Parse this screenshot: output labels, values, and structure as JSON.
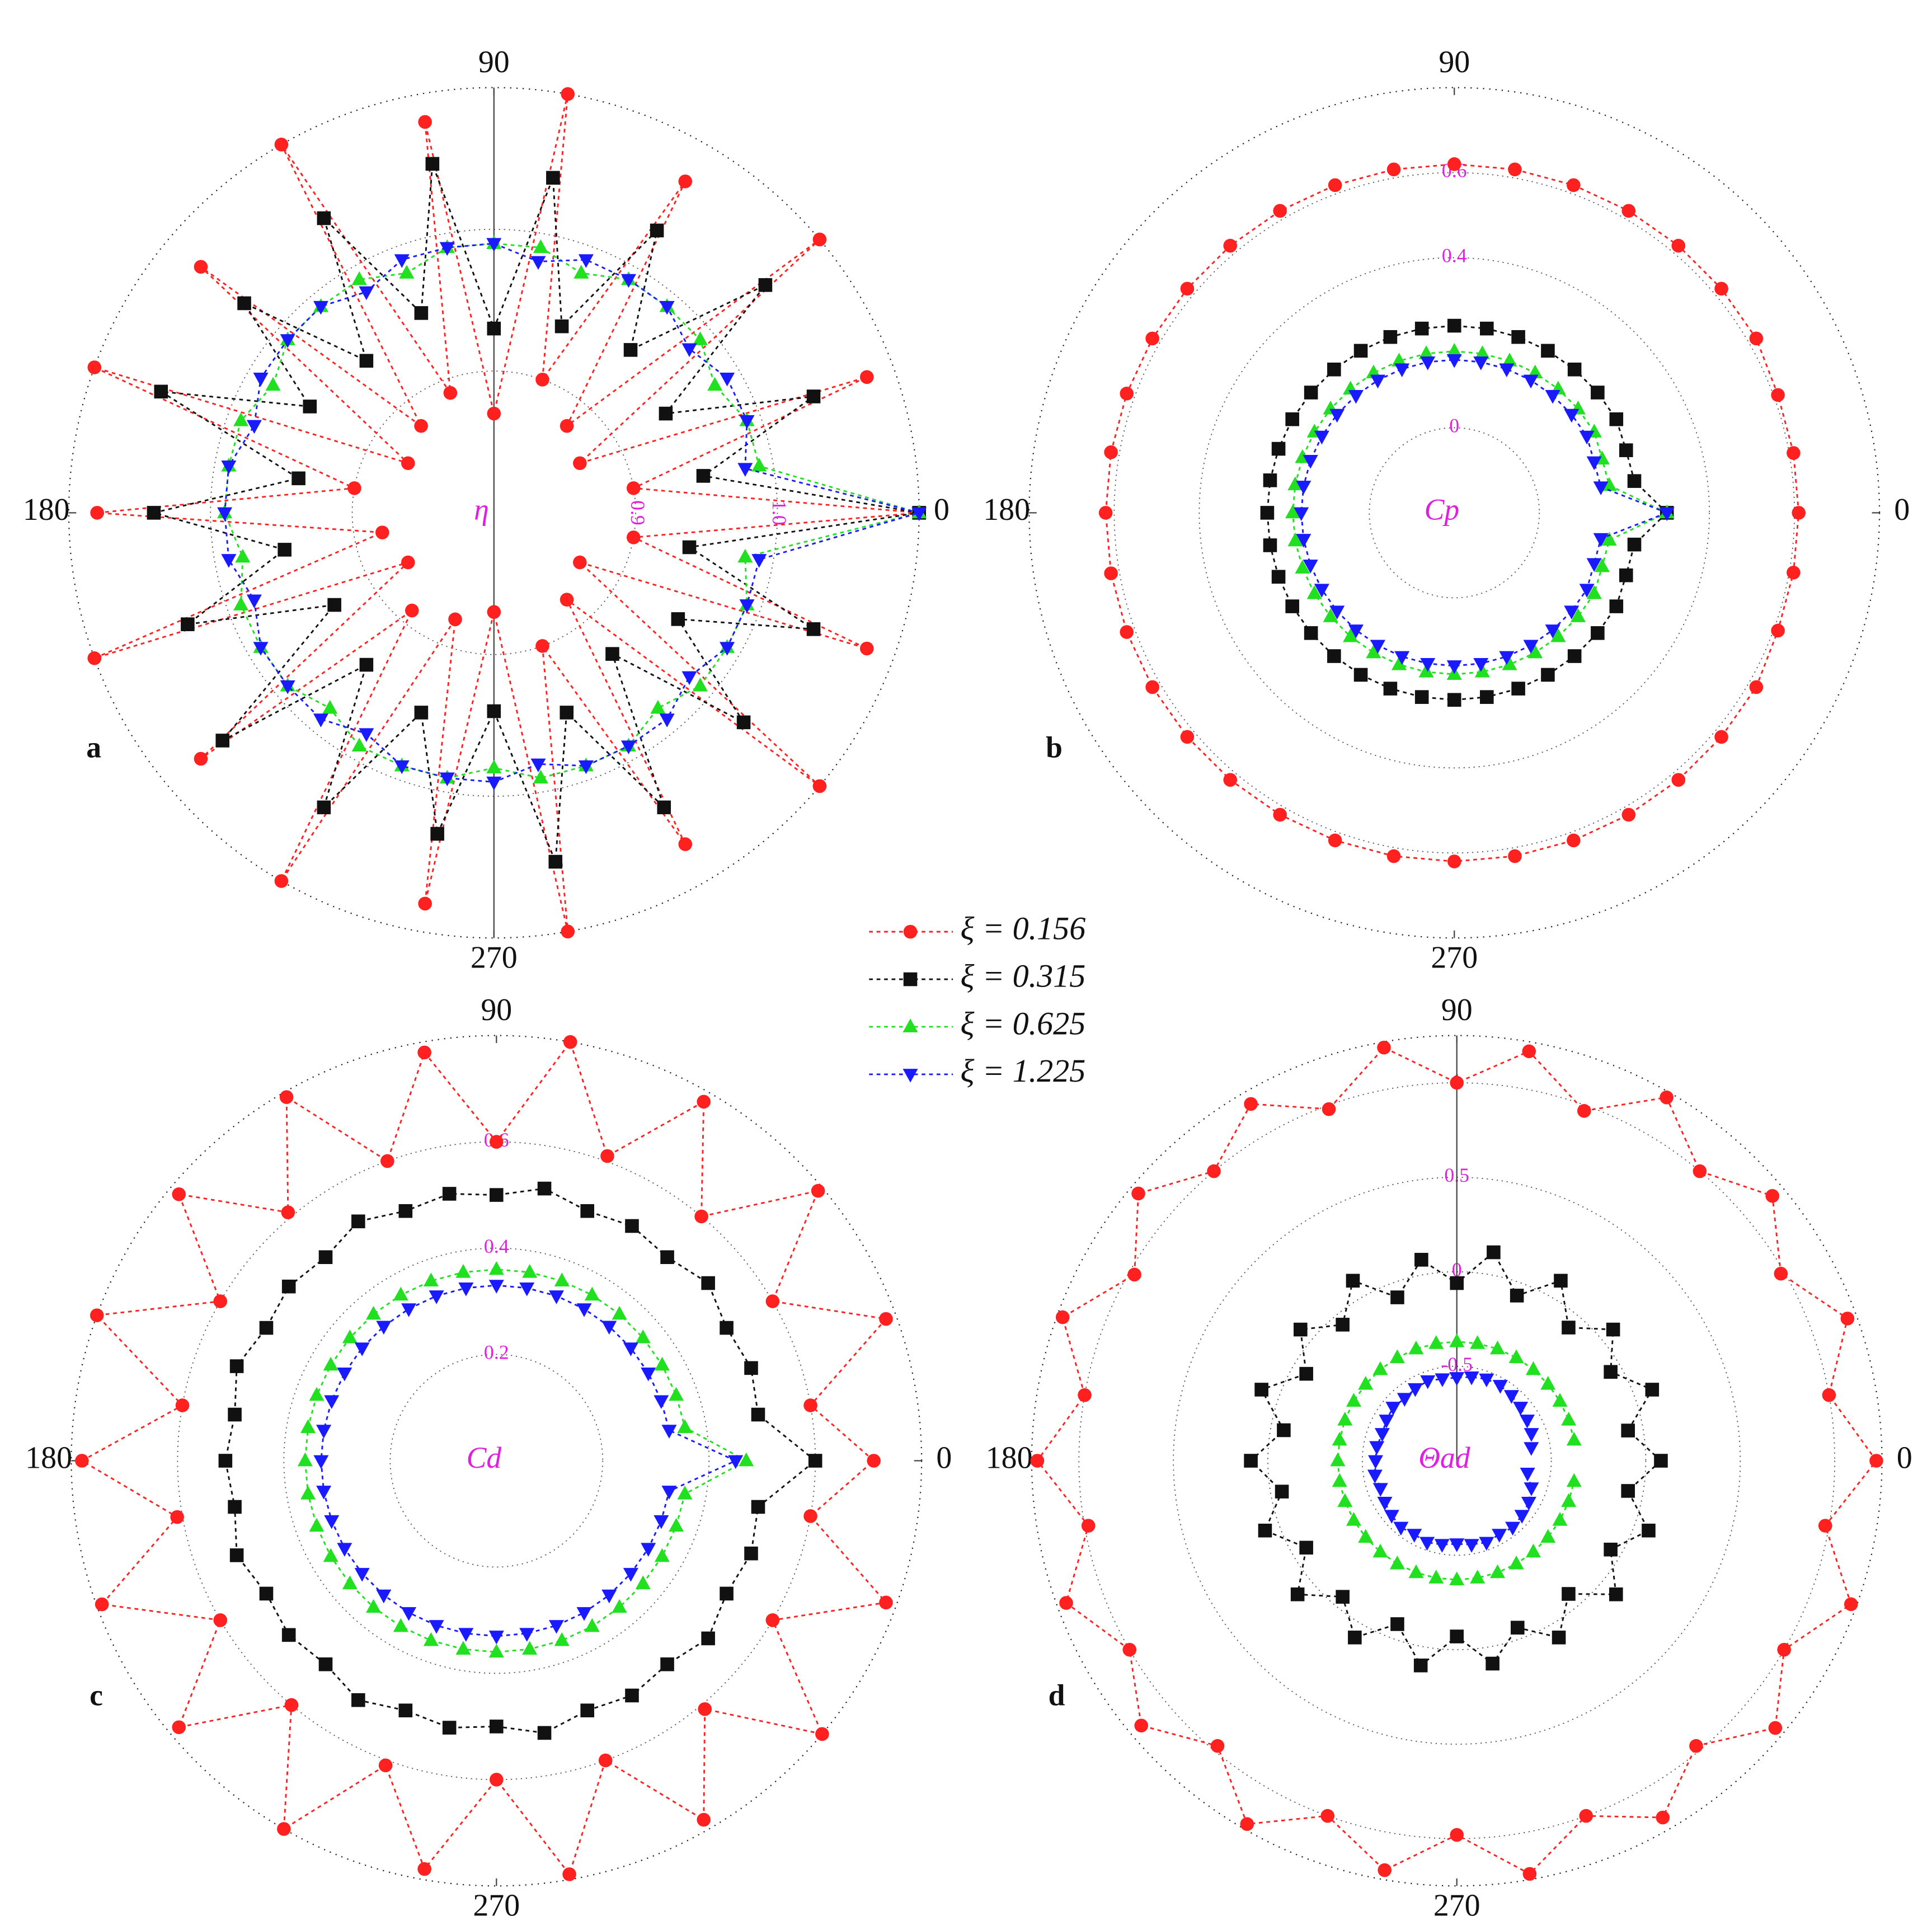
{
  "chart_data": [
    {
      "type": "polar",
      "label": "a",
      "title": "η",
      "theta": [
        0,
        10,
        20,
        30,
        40,
        50,
        60,
        70,
        80,
        90,
        100,
        110,
        120,
        130,
        140,
        150,
        160,
        170,
        180,
        190,
        200,
        210,
        220,
        230,
        240,
        250,
        260,
        270,
        280,
        290,
        300,
        310,
        320,
        330,
        340,
        350
      ],
      "thetaticks": [
        0,
        90,
        180,
        270
      ],
      "rlim": [
        0.8,
        1.1
      ],
      "rticks": [
        0.9,
        {
          "value": 1,
          "label": "1.0"
        }
      ],
      "series": [
        {
          "name": "ξ = 0.156",
          "color": "#ff2020",
          "marker": "circle",
          "values": [
            1.1,
            0.9,
            1.08,
            0.87,
            1.1,
            0.88,
            1.07,
            0.9,
            1.1,
            0.87,
            1.08,
            0.89,
            1.1,
            0.88,
            1.07,
            0.87,
            1.1,
            0.9,
            1.08,
            0.88,
            1.1,
            0.87,
            1.07,
            0.89,
            1.1,
            0.88,
            1.08,
            0.87,
            1.1,
            0.9,
            1.07,
            0.88,
            1.1,
            0.87,
            1.08,
            0.9
          ]
        },
        {
          "name": "ξ = 0.315",
          "color": "#111111",
          "marker": "square",
          "values": [
            1.1,
            0.95,
            1.04,
            0.94,
            1.05,
            0.95,
            1.03,
            0.94,
            1.04,
            0.93,
            1.05,
            0.95,
            1.04,
            0.94,
            1.03,
            0.95,
            1.05,
            0.94,
            1.04,
            0.95,
            1.03,
            0.93,
            1.05,
            0.94,
            1.04,
            0.95,
            1.03,
            0.94,
            1.05,
            0.95,
            1.04,
            0.93,
            1.03,
            0.95,
            1.04,
            0.94
          ]
        },
        {
          "name": "ξ = 0.625",
          "color": "#20e020",
          "marker": "triangle-up",
          "values": [
            1.1,
            0.99,
            0.99,
            0.98,
            0.99,
            0.99,
            0.99,
            0.98,
            0.99,
            0.99,
            0.99,
            0.98,
            0.99,
            0.99,
            0.99,
            0.98,
            0.99,
            0.99,
            0.99,
            0.98,
            0.99,
            0.99,
            0.99,
            0.98,
            0.99,
            0.99,
            0.99,
            0.98,
            0.99,
            0.99,
            0.99,
            0.98,
            0.99,
            0.99,
            0.99,
            0.98
          ]
        },
        {
          "name": "ξ = 1.225",
          "color": "#1a1aff",
          "marker": "triangle-down",
          "values": [
            1.1,
            0.98,
            0.99,
            0.99,
            0.98,
            0.99,
            0.99,
            0.99,
            0.98,
            0.99,
            0.99,
            0.99,
            0.98,
            0.99,
            0.99,
            0.99,
            0.98,
            0.99,
            0.99,
            0.99,
            0.98,
            0.99,
            0.99,
            0.99,
            0.98,
            0.99,
            0.99,
            0.99,
            0.98,
            0.99,
            0.99,
            0.99,
            0.98,
            0.99,
            0.99,
            0.99
          ]
        }
      ]
    },
    {
      "type": "polar",
      "label": "b",
      "title": "Cp",
      "theta": [
        0,
        10,
        20,
        30,
        40,
        50,
        60,
        70,
        80,
        90,
        100,
        110,
        120,
        130,
        140,
        150,
        160,
        170,
        180,
        190,
        200,
        210,
        220,
        230,
        240,
        250,
        260,
        270,
        280,
        290,
        300,
        310,
        320,
        330,
        340,
        350
      ],
      "thetaticks": [
        0,
        90,
        180,
        270
      ],
      "rlim": [
        -0.2,
        0.8
      ],
      "rticks": [
        0,
        0.4,
        0.6
      ],
      "series": [
        {
          "color": "#ff2020",
          "marker": "circle",
          "values": [
            0.61,
            0.61,
            0.61,
            0.62,
            0.62,
            0.62,
            0.62,
            0.62,
            0.62,
            0.62,
            0.62,
            0.62,
            0.62,
            0.62,
            0.62,
            0.62,
            0.62,
            0.62,
            0.62,
            0.62,
            0.62,
            0.62,
            0.62,
            0.62,
            0.62,
            0.62,
            0.62,
            0.62,
            0.62,
            0.62,
            0.62,
            0.62,
            0.62,
            0.62,
            0.61,
            0.61
          ]
        },
        {
          "color": "#111111",
          "marker": "square",
          "values": [
            0.3,
            0.23,
            0.23,
            0.24,
            0.24,
            0.24,
            0.24,
            0.24,
            0.24,
            0.24,
            0.24,
            0.24,
            0.24,
            0.24,
            0.24,
            0.24,
            0.24,
            0.24,
            0.24,
            0.24,
            0.24,
            0.24,
            0.24,
            0.24,
            0.24,
            0.24,
            0.24,
            0.24,
            0.24,
            0.24,
            0.24,
            0.24,
            0.24,
            0.24,
            0.23,
            0.23
          ]
        },
        {
          "color": "#20e020",
          "marker": "triangle-up",
          "values": [
            0.3,
            0.17,
            0.17,
            0.18,
            0.18,
            0.18,
            0.18,
            0.18,
            0.18,
            0.18,
            0.18,
            0.18,
            0.18,
            0.18,
            0.18,
            0.18,
            0.18,
            0.18,
            0.18,
            0.18,
            0.18,
            0.18,
            0.18,
            0.18,
            0.18,
            0.18,
            0.18,
            0.18,
            0.18,
            0.18,
            0.18,
            0.18,
            0.18,
            0.18,
            0.17,
            0.17
          ]
        },
        {
          "color": "#1a1aff",
          "marker": "triangle-down",
          "values": [
            0.3,
            0.15,
            0.15,
            0.16,
            0.16,
            0.16,
            0.16,
            0.16,
            0.16,
            0.16,
            0.16,
            0.16,
            0.16,
            0.16,
            0.16,
            0.16,
            0.16,
            0.16,
            0.16,
            0.16,
            0.16,
            0.16,
            0.16,
            0.16,
            0.16,
            0.16,
            0.16,
            0.16,
            0.16,
            0.16,
            0.16,
            0.16,
            0.16,
            0.16,
            0.15,
            0.15
          ]
        }
      ]
    },
    {
      "type": "polar",
      "label": "c",
      "title": "Cd",
      "theta": [
        0,
        10,
        20,
        30,
        40,
        50,
        60,
        70,
        80,
        90,
        100,
        110,
        120,
        130,
        140,
        150,
        160,
        170,
        180,
        190,
        200,
        210,
        220,
        230,
        240,
        250,
        260,
        270,
        280,
        290,
        300,
        310,
        320,
        330,
        340,
        350
      ],
      "thetaticks": [
        0,
        90,
        180,
        270
      ],
      "rlim": [
        0,
        0.8
      ],
      "rticks": [
        0.2,
        0.4,
        0.6
      ],
      "series": [
        {
          "color": "#ff2020",
          "marker": "circle",
          "values": [
            0.71,
            0.6,
            0.78,
            0.6,
            0.79,
            0.6,
            0.78,
            0.61,
            0.8,
            0.6,
            0.78,
            0.6,
            0.79,
            0.61,
            0.78,
            0.6,
            0.8,
            0.6,
            0.78,
            0.61,
            0.79,
            0.6,
            0.78,
            0.6,
            0.8,
            0.61,
            0.78,
            0.6,
            0.79,
            0.6,
            0.78,
            0.61,
            0.8,
            0.6,
            0.78,
            0.6
          ]
        },
        {
          "color": "#111111",
          "marker": "square",
          "values": [
            0.6,
            0.5,
            0.51,
            0.5,
            0.52,
            0.5,
            0.51,
            0.5,
            0.52,
            0.5,
            0.51,
            0.5,
            0.52,
            0.5,
            0.51,
            0.5,
            0.52,
            0.5,
            0.51,
            0.5,
            0.52,
            0.5,
            0.51,
            0.5,
            0.52,
            0.5,
            0.51,
            0.5,
            0.52,
            0.5,
            0.51,
            0.5,
            0.52,
            0.5,
            0.51,
            0.5
          ]
        },
        {
          "color": "#20e020",
          "marker": "triangle-up",
          "values": [
            0.47,
            0.36,
            0.36,
            0.36,
            0.36,
            0.36,
            0.36,
            0.36,
            0.36,
            0.36,
            0.36,
            0.36,
            0.36,
            0.36,
            0.36,
            0.36,
            0.36,
            0.36,
            0.36,
            0.36,
            0.36,
            0.36,
            0.36,
            0.36,
            0.36,
            0.36,
            0.36,
            0.36,
            0.36,
            0.36,
            0.36,
            0.36,
            0.36,
            0.36,
            0.36,
            0.36
          ]
        },
        {
          "color": "#1a1aff",
          "marker": "triangle-down",
          "values": [
            0.45,
            0.33,
            0.33,
            0.33,
            0.33,
            0.33,
            0.33,
            0.33,
            0.33,
            0.33,
            0.33,
            0.33,
            0.33,
            0.33,
            0.33,
            0.33,
            0.33,
            0.33,
            0.33,
            0.33,
            0.33,
            0.33,
            0.33,
            0.33,
            0.33,
            0.33,
            0.33,
            0.33,
            0.33,
            0.33,
            0.33,
            0.33,
            0.33,
            0.33,
            0.33,
            0.33
          ]
        }
      ]
    },
    {
      "type": "polar",
      "label": "d",
      "title": "Θad",
      "theta": [
        0,
        10,
        20,
        30,
        40,
        50,
        60,
        70,
        80,
        90,
        100,
        110,
        120,
        130,
        140,
        150,
        160,
        170,
        180,
        190,
        200,
        210,
        220,
        230,
        240,
        250,
        260,
        270,
        280,
        290,
        300,
        310,
        320,
        330,
        340,
        350
      ],
      "thetaticks": [
        0,
        90,
        180,
        270
      ],
      "rlim": [
        -1,
        1.25
      ],
      "rticks": [
        -0.5,
        0,
        0.5,
        1
      ],
      "series": [
        {
          "color": "#ff2020",
          "marker": "circle",
          "values": [
            1.22,
            1.0,
            1.2,
            0.98,
            1.18,
            1.0,
            1.22,
            0.97,
            1.2,
            1.0,
            1.22,
            0.98,
            1.18,
            1.0,
            1.2,
            0.97,
            1.22,
            1.0,
            1.22,
            0.98,
            1.2,
            1.0,
            1.18,
            0.97,
            1.22,
            1.0,
            1.2,
            0.98,
            1.22,
            1.0,
            1.18,
            0.97,
            1.2,
            1.0,
            1.22,
            0.98
          ]
        },
        {
          "color": "#111111",
          "marker": "square",
          "values": [
            0.08,
            -0.08,
            0.1,
            -0.06,
            0.08,
            -0.08,
            0.1,
            -0.07,
            0.12,
            -0.06,
            0.08,
            -0.08,
            0.1,
            -0.06,
            0.08,
            -0.08,
            0.1,
            -0.07,
            0.09,
            -0.06,
            0.08,
            -0.08,
            0.1,
            -0.06,
            0.08,
            -0.08,
            0.1,
            -0.07,
            0.09,
            -0.06,
            0.08,
            -0.08,
            0.1,
            -0.06,
            0.08,
            -0.08
          ]
        },
        {
          "color": "#20e020",
          "marker": "triangle-up",
          "values": [
            null,
            -0.37,
            -0.37,
            -0.37,
            -0.37,
            -0.37,
            -0.37,
            -0.37,
            -0.37,
            -0.37,
            -0.37,
            -0.37,
            -0.37,
            -0.37,
            -0.37,
            -0.37,
            -0.37,
            -0.37,
            -0.37,
            -0.37,
            -0.37,
            -0.37,
            -0.37,
            -0.37,
            -0.37,
            -0.37,
            -0.37,
            -0.37,
            -0.37,
            -0.37,
            -0.37,
            -0.37,
            -0.37,
            -0.37,
            -0.37,
            -0.37
          ]
        },
        {
          "color": "#1a1aff",
          "marker": "triangle-down",
          "values": [
            null,
            -0.6,
            -0.58,
            -0.57,
            -0.56,
            -0.55,
            -0.54,
            -0.54,
            -0.55,
            -0.56,
            -0.56,
            -0.55,
            -0.56,
            -0.57,
            -0.56,
            -0.57,
            -0.58,
            -0.57,
            -0.57,
            -0.56,
            -0.57,
            -0.56,
            -0.55,
            -0.54,
            -0.55,
            -0.54,
            -0.55,
            -0.56,
            -0.55,
            -0.54,
            -0.55,
            -0.54,
            -0.55,
            -0.56,
            -0.58,
            -0.62
          ]
        }
      ]
    }
  ]
}
